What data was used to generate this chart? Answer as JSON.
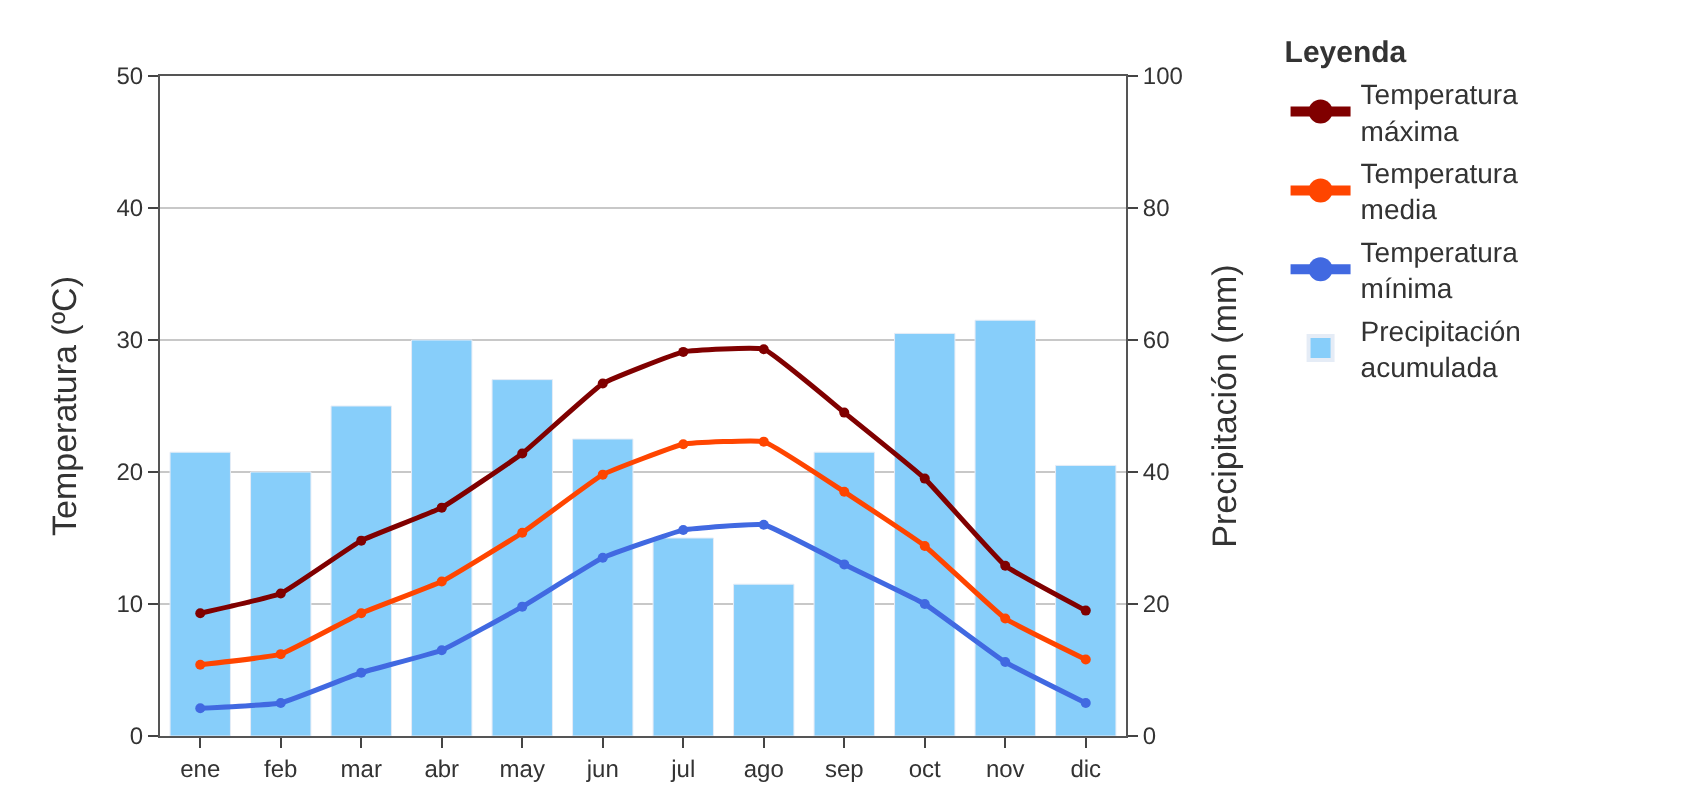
{
  "chart_data": {
    "type": "line",
    "ylabel": "Temperatura (ºC)",
    "y2label": "Precipitación (mm)",
    "legend_title": "Leyenda",
    "categories": [
      "ene",
      "feb",
      "mar",
      "abr",
      "may",
      "jun",
      "jul",
      "ago",
      "sep",
      "oct",
      "nov",
      "dic"
    ],
    "series": [
      {
        "name": "Temperatura\nmáxima",
        "color": "#800000",
        "values": [
          9.3,
          10.8,
          14.8,
          17.3,
          21.4,
          26.7,
          29.1,
          29.3,
          24.5,
          19.5,
          12.9,
          9.5
        ]
      },
      {
        "name": "Temperatura\nmedia",
        "color": "#ff4500",
        "values": [
          5.4,
          6.2,
          9.3,
          11.7,
          15.4,
          19.8,
          22.1,
          22.3,
          18.5,
          14.4,
          8.9,
          5.8
        ]
      },
      {
        "name": "Temperatura\nmínima",
        "color": "#4169e1",
        "values": [
          2.1,
          2.5,
          4.8,
          6.5,
          9.8,
          13.5,
          15.6,
          16.0,
          13.0,
          10.0,
          5.6,
          2.5
        ]
      },
      {
        "name": "Precipitación\nacumulada",
        "color": "#87cefa",
        "type": "bar",
        "axis": "y2",
        "values": [
          43,
          40,
          50,
          60,
          54,
          45,
          30,
          23,
          43,
          61,
          63,
          41
        ]
      }
    ],
    "ylim": [
      0,
      50
    ],
    "yticks": [
      0,
      10,
      20,
      30,
      40,
      50
    ],
    "y2lim": [
      0,
      100
    ],
    "y2ticks": [
      0,
      20,
      40,
      60,
      80,
      100
    ],
    "grid": "y",
    "legend": "right",
    "marker": "circle",
    "line_style": "solid"
  }
}
